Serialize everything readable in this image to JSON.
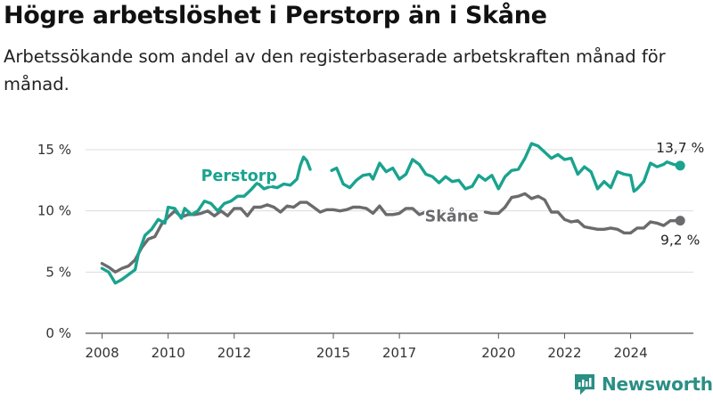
{
  "title": "Högre arbetslöshet i Perstorp än i Skåne",
  "subtitle": "Arbetssökande som andel av den registerbaserade arbetskraften månad för månad.",
  "brand": "Newsworthy",
  "colors": {
    "perstorp": "#1aa38f",
    "skane": "#6b6b6e",
    "grid": "#dcdcdc",
    "brand": "#2a8f84"
  },
  "icons": {
    "logo": "bar-chart-logo-icon"
  },
  "chart_data": {
    "type": "line",
    "title": "Högre arbetslöshet i Perstorp än i Skåne",
    "subtitle": "Arbetssökande som andel av den registerbaserade arbetskraften månad för månad.",
    "xlabel": "",
    "ylabel": "",
    "xlim": [
      2007.5,
      2025.9
    ],
    "ylim": [
      0,
      15
    ],
    "yticks": [
      {
        "value": 0,
        "label": "0 %"
      },
      {
        "value": 5,
        "label": "5 %"
      },
      {
        "value": 10,
        "label": "10 %"
      },
      {
        "value": 15,
        "label": "15 %"
      }
    ],
    "xticks": [
      {
        "value": 2008,
        "label": "2008"
      },
      {
        "value": 2010,
        "label": "2010"
      },
      {
        "value": 2012,
        "label": "2012"
      },
      {
        "value": 2015,
        "label": "2015"
      },
      {
        "value": 2017,
        "label": "2017"
      },
      {
        "value": 2020,
        "label": "2020"
      },
      {
        "value": 2022,
        "label": "2022"
      },
      {
        "value": 2024,
        "label": "2024"
      }
    ],
    "grid": "horizontal",
    "legend": "inline-labels",
    "series": [
      {
        "name": "Perstorp",
        "color": "#1aa38f",
        "end_label": "13,7 %",
        "segments": [
          [
            [
              2008.0,
              5.3
            ],
            [
              2008.2,
              5.0
            ],
            [
              2008.4,
              4.1
            ],
            [
              2008.6,
              4.4
            ],
            [
              2008.8,
              4.8
            ],
            [
              2009.0,
              5.2
            ],
            [
              2009.1,
              6.5
            ],
            [
              2009.3,
              8.0
            ],
            [
              2009.5,
              8.5
            ],
            [
              2009.7,
              9.3
            ],
            [
              2009.9,
              9.0
            ],
            [
              2010.0,
              10.3
            ],
            [
              2010.2,
              10.2
            ],
            [
              2010.4,
              9.4
            ],
            [
              2010.5,
              10.2
            ],
            [
              2010.7,
              9.7
            ],
            [
              2010.9,
              10.0
            ],
            [
              2011.1,
              10.8
            ],
            [
              2011.3,
              10.6
            ],
            [
              2011.5,
              10.0
            ],
            [
              2011.7,
              10.6
            ],
            [
              2011.9,
              10.8
            ],
            [
              2012.1,
              11.2
            ],
            [
              2012.3,
              11.2
            ],
            [
              2012.5,
              11.7
            ],
            [
              2012.7,
              12.3
            ],
            [
              2012.9,
              11.8
            ],
            [
              2013.1,
              12.0
            ],
            [
              2013.3,
              11.9
            ],
            [
              2013.5,
              12.2
            ],
            [
              2013.7,
              12.1
            ],
            [
              2013.9,
              12.6
            ],
            [
              2014.0,
              13.7
            ],
            [
              2014.1,
              14.4
            ],
            [
              2014.2,
              14.1
            ],
            [
              2014.3,
              13.4
            ]
          ],
          [
            [
              2014.95,
              13.3
            ],
            [
              2015.1,
              13.5
            ],
            [
              2015.3,
              12.2
            ],
            [
              2015.5,
              11.9
            ],
            [
              2015.7,
              12.5
            ],
            [
              2015.9,
              12.9
            ],
            [
              2016.1,
              13.0
            ],
            [
              2016.2,
              12.6
            ],
            [
              2016.4,
              13.9
            ],
            [
              2016.6,
              13.2
            ],
            [
              2016.8,
              13.5
            ],
            [
              2017.0,
              12.6
            ],
            [
              2017.2,
              13.0
            ],
            [
              2017.4,
              14.2
            ],
            [
              2017.6,
              13.8
            ],
            [
              2017.8,
              13.0
            ],
            [
              2018.0,
              12.8
            ],
            [
              2018.2,
              12.3
            ],
            [
              2018.4,
              12.8
            ],
            [
              2018.6,
              12.4
            ],
            [
              2018.8,
              12.5
            ],
            [
              2019.0,
              11.8
            ],
            [
              2019.2,
              12.0
            ],
            [
              2019.4,
              12.9
            ],
            [
              2019.6,
              12.5
            ],
            [
              2019.8,
              12.9
            ],
            [
              2020.0,
              11.8
            ],
            [
              2020.2,
              12.8
            ],
            [
              2020.4,
              13.3
            ],
            [
              2020.6,
              13.4
            ],
            [
              2020.8,
              14.3
            ],
            [
              2021.0,
              15.5
            ],
            [
              2021.2,
              15.3
            ],
            [
              2021.4,
              14.8
            ],
            [
              2021.6,
              14.3
            ],
            [
              2021.8,
              14.6
            ],
            [
              2022.0,
              14.2
            ],
            [
              2022.2,
              14.3
            ],
            [
              2022.4,
              13.0
            ],
            [
              2022.6,
              13.6
            ],
            [
              2022.8,
              13.2
            ],
            [
              2023.0,
              11.8
            ],
            [
              2023.2,
              12.4
            ],
            [
              2023.4,
              11.9
            ],
            [
              2023.6,
              13.2
            ],
            [
              2023.8,
              13.0
            ],
            [
              2024.0,
              12.9
            ],
            [
              2024.1,
              11.6
            ],
            [
              2024.2,
              11.8
            ],
            [
              2024.4,
              12.4
            ],
            [
              2024.6,
              13.9
            ],
            [
              2024.8,
              13.6
            ],
            [
              2025.0,
              13.8
            ],
            [
              2025.1,
              14.0
            ],
            [
              2025.3,
              13.8
            ],
            [
              2025.5,
              13.7
            ]
          ]
        ]
      },
      {
        "name": "Skåne",
        "color": "#6b6b6e",
        "end_label": "9,2 %",
        "segments": [
          [
            [
              2008.0,
              5.7
            ],
            [
              2008.2,
              5.4
            ],
            [
              2008.4,
              5.0
            ],
            [
              2008.6,
              5.3
            ],
            [
              2008.8,
              5.5
            ],
            [
              2009.0,
              6.0
            ],
            [
              2009.2,
              7.0
            ],
            [
              2009.4,
              7.7
            ],
            [
              2009.6,
              7.9
            ],
            [
              2009.8,
              8.9
            ],
            [
              2010.0,
              9.5
            ],
            [
              2010.2,
              10.0
            ],
            [
              2010.4,
              9.5
            ],
            [
              2010.6,
              9.7
            ],
            [
              2010.8,
              9.7
            ],
            [
              2011.0,
              9.8
            ],
            [
              2011.2,
              10.0
            ],
            [
              2011.4,
              9.6
            ],
            [
              2011.6,
              10.0
            ],
            [
              2011.8,
              9.6
            ],
            [
              2012.0,
              10.2
            ],
            [
              2012.2,
              10.2
            ],
            [
              2012.4,
              9.6
            ],
            [
              2012.6,
              10.3
            ],
            [
              2012.8,
              10.3
            ],
            [
              2013.0,
              10.5
            ],
            [
              2013.2,
              10.3
            ],
            [
              2013.4,
              9.9
            ],
            [
              2013.6,
              10.4
            ],
            [
              2013.8,
              10.3
            ],
            [
              2014.0,
              10.7
            ],
            [
              2014.2,
              10.7
            ],
            [
              2014.4,
              10.3
            ],
            [
              2014.6,
              9.9
            ],
            [
              2014.8,
              10.1
            ],
            [
              2015.0,
              10.1
            ],
            [
              2015.2,
              10.0
            ],
            [
              2015.4,
              10.1
            ],
            [
              2015.6,
              10.3
            ],
            [
              2015.8,
              10.3
            ],
            [
              2016.0,
              10.2
            ],
            [
              2016.2,
              9.8
            ],
            [
              2016.4,
              10.4
            ],
            [
              2016.6,
              9.7
            ],
            [
              2016.8,
              9.7
            ],
            [
              2017.0,
              9.8
            ],
            [
              2017.2,
              10.2
            ],
            [
              2017.4,
              10.2
            ],
            [
              2017.6,
              9.7
            ],
            [
              2017.8,
              9.9
            ],
            [
              2018.0,
              9.9
            ],
            [
              2018.2,
              10.0
            ],
            [
              2018.3,
              9.9
            ]
          ],
          [
            [
              2019.6,
              9.9
            ],
            [
              2019.8,
              9.8
            ],
            [
              2020.0,
              9.8
            ],
            [
              2020.2,
              10.3
            ],
            [
              2020.4,
              11.1
            ],
            [
              2020.6,
              11.2
            ],
            [
              2020.8,
              11.4
            ],
            [
              2021.0,
              11.0
            ],
            [
              2021.2,
              11.2
            ],
            [
              2021.4,
              10.9
            ],
            [
              2021.6,
              9.9
            ],
            [
              2021.8,
              9.9
            ],
            [
              2022.0,
              9.3
            ],
            [
              2022.2,
              9.1
            ],
            [
              2022.4,
              9.2
            ],
            [
              2022.6,
              8.7
            ],
            [
              2022.8,
              8.6
            ],
            [
              2023.0,
              8.5
            ],
            [
              2023.2,
              8.5
            ],
            [
              2023.4,
              8.6
            ],
            [
              2023.6,
              8.5
            ],
            [
              2023.8,
              8.2
            ],
            [
              2024.0,
              8.2
            ],
            [
              2024.2,
              8.6
            ],
            [
              2024.4,
              8.6
            ],
            [
              2024.6,
              9.1
            ],
            [
              2024.8,
              9.0
            ],
            [
              2025.0,
              8.8
            ],
            [
              2025.2,
              9.2
            ],
            [
              2025.5,
              9.2
            ]
          ]
        ]
      }
    ]
  }
}
